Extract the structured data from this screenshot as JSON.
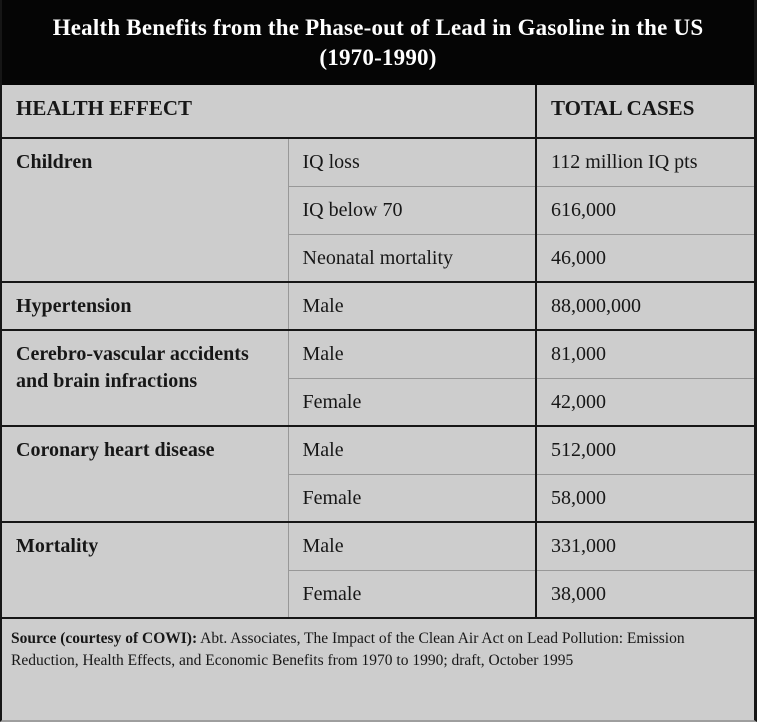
{
  "title": {
    "line1": "Health Benefits from the Phase-out of Lead in Gasoline in the US",
    "line2": "(1970-1990)"
  },
  "header": {
    "health_effect": "HEALTH EFFECT",
    "total_cases": "TOTAL CASES"
  },
  "table": {
    "groups": [
      {
        "effect": "Children",
        "rows": [
          {
            "sub_effect": "IQ loss",
            "total_cases": "112 million IQ pts"
          },
          {
            "sub_effect": "IQ below 70",
            "total_cases": "616,000"
          },
          {
            "sub_effect": "Neonatal mortality",
            "total_cases": "46,000"
          }
        ]
      },
      {
        "effect": "Hypertension",
        "rows": [
          {
            "sub_effect": "Male",
            "total_cases": "88,000,000"
          }
        ]
      },
      {
        "effect": "Cerebro-vascular accidents and brain infractions",
        "rows": [
          {
            "sub_effect": "Male",
            "total_cases": "81,000"
          },
          {
            "sub_effect": "Female",
            "total_cases": "42,000"
          }
        ]
      },
      {
        "effect": "Coronary heart disease",
        "rows": [
          {
            "sub_effect": "Male",
            "total_cases": "512,000"
          },
          {
            "sub_effect": "Female",
            "total_cases": "58,000"
          }
        ]
      },
      {
        "effect": "Mortality",
        "rows": [
          {
            "sub_effect": "Male",
            "total_cases": "331,000"
          },
          {
            "sub_effect": "Female",
            "total_cases": "38,000"
          }
        ]
      }
    ]
  },
  "source": {
    "label": "Source (courtesy of COWI):",
    "text": " Abt. Associates, The Impact of the Clean Air Act on Lead Pollution: Emission Reduction, Health Effects, and Economic Benefits from 1970 to 1990; draft, October 1995"
  },
  "colors": {
    "background": "#cdcdcd",
    "title_band": "#050505",
    "title_text": "#ffffff",
    "body_text": "#171717",
    "heavy_line": "#161616",
    "light_line": "#989898"
  }
}
